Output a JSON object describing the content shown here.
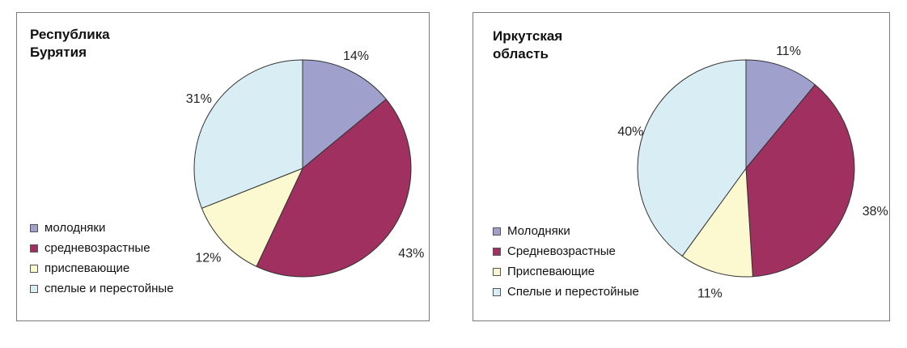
{
  "colors": [
    "#a0a0cc",
    "#a03060",
    "#fcf8d0",
    "#d8eef4"
  ],
  "chart_data": [
    {
      "type": "pie",
      "title": "Республика Бурятия",
      "title_lines": [
        "Республика",
        "Бурятия"
      ],
      "categories": [
        "молодняки",
        "средневозрастные",
        "приспевающие",
        "спелые и перестойные"
      ],
      "values": [
        14,
        43,
        12,
        31
      ],
      "labels": [
        "14%",
        "43%",
        "12%",
        "31%"
      ]
    },
    {
      "type": "pie",
      "title": "Иркутская область",
      "title_lines": [
        "Иркутская",
        "область"
      ],
      "categories": [
        "Молодняки",
        "Средневозрастные",
        "Приспевающие",
        "Спелые и перестойные"
      ],
      "values": [
        11,
        38,
        11,
        40
      ],
      "labels": [
        "11%",
        "38%",
        "11%",
        "40%"
      ]
    }
  ]
}
